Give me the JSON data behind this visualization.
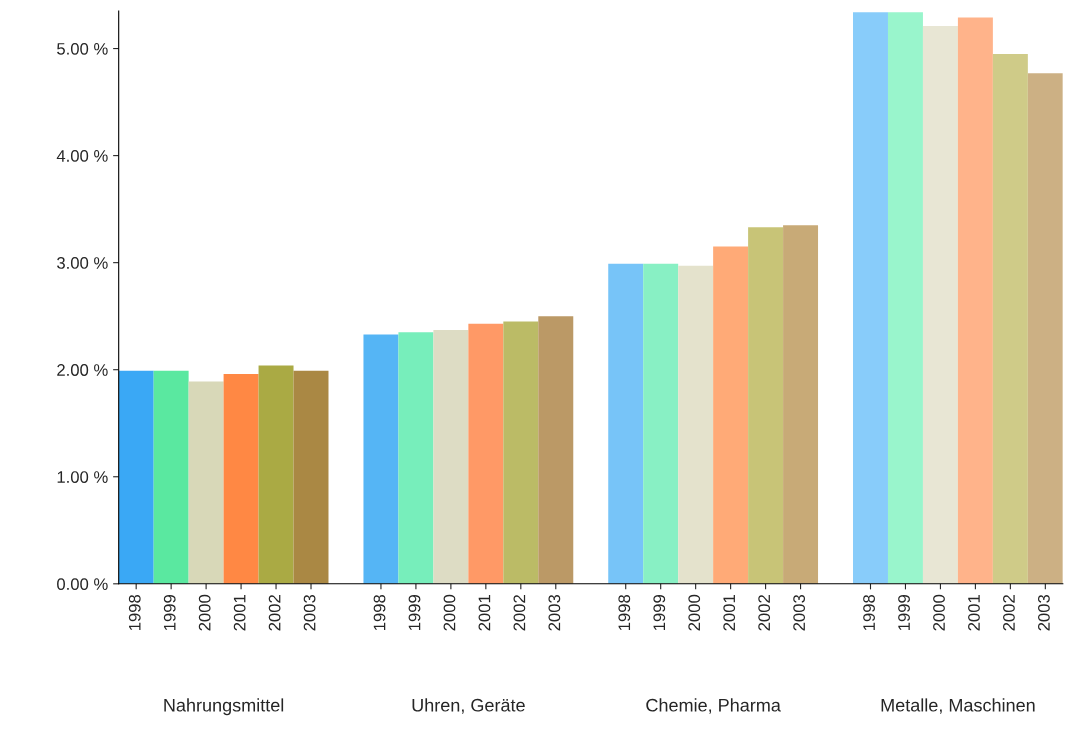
{
  "chart_data": {
    "type": "bar",
    "categories": [
      "Nahrungsmittel",
      "Uhren, Geräte",
      "Chemie, Pharma",
      "Metalle, Maschinen"
    ],
    "series": [
      {
        "name": "1998",
        "colors": [
          "#3aa8f5",
          "#55b5f5",
          "#77c4f8",
          "#88ccfa"
        ],
        "values": [
          1.99,
          2.33,
          2.99,
          5.34
        ]
      },
      {
        "name": "1999",
        "colors": [
          "#5ae8a0",
          "#77eebb",
          "#88f0c4",
          "#99f5cc"
        ],
        "values": [
          1.99,
          2.35,
          2.99,
          5.34
        ]
      },
      {
        "name": "2000",
        "colors": [
          "#d8d8b8",
          "#dddcc4",
          "#e4e2cc",
          "#e8e6d4"
        ],
        "values": [
          1.89,
          2.37,
          2.97,
          5.21
        ]
      },
      {
        "name": "2001",
        "colors": [
          "#ff8844",
          "#ff9966",
          "#ffaa77",
          "#ffb38a"
        ],
        "values": [
          1.96,
          2.43,
          3.15,
          5.29
        ]
      },
      {
        "name": "2002",
        "colors": [
          "#aaaa44",
          "#bbbb66",
          "#c8c477",
          "#cfcb88"
        ],
        "values": [
          2.04,
          2.45,
          3.33,
          4.95
        ]
      },
      {
        "name": "2003",
        "colors": [
          "#aa8844",
          "#bb9966",
          "#c8aa77",
          "#ccb084"
        ],
        "values": [
          1.99,
          2.5,
          3.35,
          4.77
        ]
      }
    ],
    "ylim": [
      0,
      5.35
    ],
    "yticks": [
      {
        "value": 0,
        "label": "0.00 %"
      },
      {
        "value": 1,
        "label": "1.00 %"
      },
      {
        "value": 2,
        "label": "2.00 %"
      },
      {
        "value": 3,
        "label": "3.00 %"
      },
      {
        "value": 4,
        "label": "4.00 %"
      },
      {
        "value": 5,
        "label": "5.00 %"
      }
    ],
    "grid": false,
    "legend": false
  }
}
